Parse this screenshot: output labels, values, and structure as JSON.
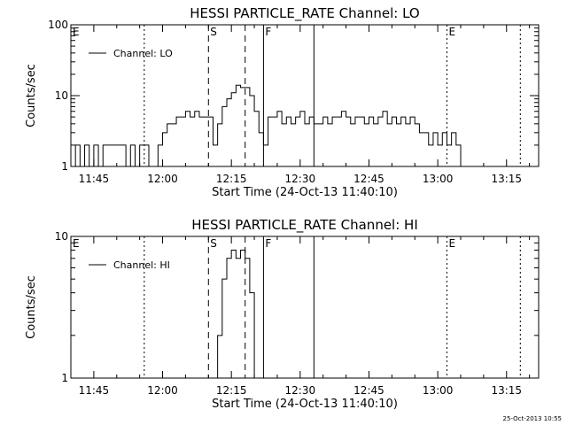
{
  "chart_data": [
    {
      "type": "line",
      "title": "HESSI PARTICLE_RATE Channel: LO",
      "xlabel": "Start Time (24-Oct-13 11:40:10)",
      "ylabel": "Counts/sec",
      "yscale": "log",
      "ylim": [
        1,
        100
      ],
      "xlim": [
        "11:40",
        "13:22"
      ],
      "x_ticks": [
        "11:45",
        "12:00",
        "12:15",
        "12:30",
        "12:45",
        "13:00",
        "13:15"
      ],
      "y_ticks": [
        "1",
        "10",
        "100"
      ],
      "legend": "top-left",
      "series": [
        {
          "name": "Channel: LO",
          "points": [
            [
              "11:40",
              1
            ],
            [
              "11:41",
              2
            ],
            [
              "11:42",
              1
            ],
            [
              "11:43",
              2
            ],
            [
              "11:44",
              1
            ],
            [
              "11:45",
              2
            ],
            [
              "11:46",
              1
            ],
            [
              "11:47",
              2
            ],
            [
              "11:48",
              2
            ],
            [
              "11:49",
              2
            ],
            [
              "11:50",
              2
            ],
            [
              "11:51",
              2
            ],
            [
              "11:52",
              1
            ],
            [
              "11:53",
              2
            ],
            [
              "11:54",
              1
            ],
            [
              "11:55",
              2
            ],
            [
              "11:56",
              2
            ],
            [
              "11:57",
              1
            ],
            [
              "11:58",
              1
            ],
            [
              "11:59",
              2
            ],
            [
              "12:00",
              3
            ],
            [
              "12:01",
              4
            ],
            [
              "12:02",
              4
            ],
            [
              "12:03",
              5
            ],
            [
              "12:04",
              5
            ],
            [
              "12:05",
              6
            ],
            [
              "12:06",
              5
            ],
            [
              "12:07",
              6
            ],
            [
              "12:08",
              5
            ],
            [
              "12:09",
              5
            ],
            [
              "12:10",
              5
            ],
            [
              "12:11",
              2
            ],
            [
              "12:12",
              4
            ],
            [
              "12:13",
              7
            ],
            [
              "12:14",
              9
            ],
            [
              "12:15",
              11
            ],
            [
              "12:16",
              14
            ],
            [
              "12:17",
              13
            ],
            [
              "12:18",
              13
            ],
            [
              "12:19",
              10
            ],
            [
              "12:20",
              6
            ],
            [
              "12:21",
              3
            ],
            [
              "12:22",
              2
            ],
            [
              "12:23",
              5
            ],
            [
              "12:24",
              5
            ],
            [
              "12:25",
              6
            ],
            [
              "12:26",
              4
            ],
            [
              "12:27",
              5
            ],
            [
              "12:28",
              4
            ],
            [
              "12:29",
              5
            ],
            [
              "12:30",
              6
            ],
            [
              "12:31",
              4
            ],
            [
              "12:32",
              5
            ],
            [
              "12:33",
              4
            ],
            [
              "12:34",
              4
            ],
            [
              "12:35",
              5
            ],
            [
              "12:36",
              4
            ],
            [
              "12:37",
              5
            ],
            [
              "12:38",
              5
            ],
            [
              "12:39",
              6
            ],
            [
              "12:40",
              5
            ],
            [
              "12:41",
              4
            ],
            [
              "12:42",
              5
            ],
            [
              "12:43",
              5
            ],
            [
              "12:44",
              4
            ],
            [
              "12:45",
              5
            ],
            [
              "12:46",
              4
            ],
            [
              "12:47",
              5
            ],
            [
              "12:48",
              6
            ],
            [
              "12:49",
              4
            ],
            [
              "12:50",
              5
            ],
            [
              "12:51",
              4
            ],
            [
              "12:52",
              5
            ],
            [
              "12:53",
              4
            ],
            [
              "12:54",
              5
            ],
            [
              "12:55",
              4
            ],
            [
              "12:56",
              3
            ],
            [
              "12:57",
              3
            ],
            [
              "12:58",
              2
            ],
            [
              "12:59",
              3
            ],
            [
              "13:00",
              2
            ],
            [
              "13:01",
              3
            ],
            [
              "13:02",
              2
            ],
            [
              "13:03",
              3
            ],
            [
              "13:04",
              2
            ],
            [
              "13:05",
              1
            ],
            [
              "13:06",
              1
            ],
            [
              "13:07",
              1
            ],
            [
              "13:08",
              1
            ],
            [
              "13:09",
              1
            ],
            [
              "13:10",
              1
            ],
            [
              "13:11",
              1
            ],
            [
              "13:12",
              1
            ],
            [
              "13:13",
              1
            ],
            [
              "13:14",
              1
            ],
            [
              "13:15",
              1
            ],
            [
              "13:16",
              1
            ],
            [
              "13:17",
              1
            ],
            [
              "13:18",
              1
            ],
            [
              "13:19",
              1
            ],
            [
              "13:20",
              1
            ],
            [
              "13:21",
              1
            ],
            [
              "13:22",
              1
            ]
          ]
        }
      ],
      "markers": [
        {
          "label": "E",
          "time": "11:40",
          "style": "dotted"
        },
        {
          "label": "",
          "time": "11:56",
          "style": "dotted"
        },
        {
          "label": "S",
          "time": "12:10",
          "style": "dashed"
        },
        {
          "label": "",
          "time": "12:18",
          "style": "dashed"
        },
        {
          "label": "F",
          "time": "12:22",
          "style": "solid"
        },
        {
          "label": "",
          "time": "12:33",
          "style": "solid"
        },
        {
          "label": "E",
          "time": "13:02",
          "style": "dotted"
        },
        {
          "label": "",
          "time": "13:18",
          "style": "dotted"
        }
      ]
    },
    {
      "type": "line",
      "title": "HESSI PARTICLE_RATE Channel: HI",
      "xlabel": "Start Time (24-Oct-13 11:40:10)",
      "ylabel": "Counts/sec",
      "yscale": "log",
      "ylim": [
        1,
        10
      ],
      "xlim": [
        "11:40",
        "13:22"
      ],
      "x_ticks": [
        "11:45",
        "12:00",
        "12:15",
        "12:30",
        "12:45",
        "13:00",
        "13:15"
      ],
      "y_ticks": [
        "1",
        "10"
      ],
      "legend": "top-left",
      "series": [
        {
          "name": "Channel: HI",
          "points": [
            [
              "12:11",
              1
            ],
            [
              "12:12",
              2
            ],
            [
              "12:13",
              5
            ],
            [
              "12:14",
              7
            ],
            [
              "12:15",
              8
            ],
            [
              "12:16",
              7
            ],
            [
              "12:17",
              8
            ],
            [
              "12:18",
              7
            ],
            [
              "12:19",
              4
            ],
            [
              "12:20",
              1
            ]
          ]
        }
      ],
      "markers": [
        {
          "label": "E",
          "time": "11:40",
          "style": "dotted"
        },
        {
          "label": "",
          "time": "11:56",
          "style": "dotted"
        },
        {
          "label": "S",
          "time": "12:10",
          "style": "dashed"
        },
        {
          "label": "",
          "time": "12:18",
          "style": "dashed"
        },
        {
          "label": "F",
          "time": "12:22",
          "style": "solid"
        },
        {
          "label": "",
          "time": "12:33",
          "style": "solid"
        },
        {
          "label": "E",
          "time": "13:02",
          "style": "dotted"
        },
        {
          "label": "",
          "time": "13:18",
          "style": "dotted"
        }
      ]
    }
  ],
  "footer": {
    "timestamp": "25-Oct-2013 10:55"
  }
}
